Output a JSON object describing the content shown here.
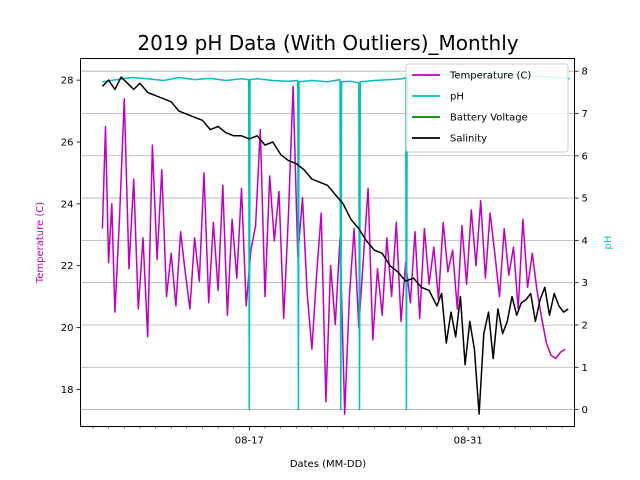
{
  "chart_data": {
    "type": "line",
    "title": "2019 pH Data (With Outliers)_Monthly",
    "xlabel": "Dates (MM-DD)",
    "ylabel_left": "Temperature (C)",
    "ylabel_right": "pH",
    "x_tick_labels": [
      "08-17",
      "08-31"
    ],
    "x_ticks_days": [
      17,
      31
    ],
    "x_range_days": [
      6.2,
      37.8
    ],
    "ylim_left": [
      16.8,
      28.7
    ],
    "ylim_right": [
      -0.4,
      8.3
    ],
    "left_ticks": [
      18,
      20,
      22,
      24,
      26,
      28
    ],
    "right_ticks": [
      0,
      1,
      2,
      3,
      4,
      5,
      6,
      7,
      8
    ],
    "grid": "horizontal on right axis",
    "legend_position": "top-right",
    "colors": {
      "temperature": "#bf00bf",
      "ph": "#00bfbf",
      "battery": "#008000",
      "salinity": "#000000",
      "left_axis_label": "#bf00bf",
      "right_axis_label": "#00bfbf"
    },
    "series": [
      {
        "name": "Temperature (C)",
        "axis": "left",
        "x_days": [
          7.6,
          7.8,
          8.0,
          8.2,
          8.4,
          8.7,
          9.0,
          9.3,
          9.6,
          9.9,
          10.2,
          10.5,
          10.8,
          11.1,
          11.4,
          11.7,
          12.0,
          12.3,
          12.6,
          12.9,
          13.2,
          13.5,
          13.8,
          14.1,
          14.4,
          14.7,
          15.0,
          15.3,
          15.6,
          15.9,
          16.2,
          16.5,
          16.8,
          17.1,
          17.4,
          17.7,
          18.0,
          18.3,
          18.6,
          18.9,
          19.2,
          19.5,
          19.8,
          20.1,
          20.4,
          20.7,
          21.0,
          21.3,
          21.6,
          21.9,
          22.2,
          22.5,
          22.8,
          23.1,
          23.4,
          23.7,
          24.0,
          24.3,
          24.6,
          24.9,
          25.2,
          25.5,
          25.8,
          26.1,
          26.4,
          26.7,
          27.0,
          27.3,
          27.6,
          27.9,
          28.2,
          28.5,
          28.8,
          29.1,
          29.4,
          29.7,
          30.0,
          30.3,
          30.6,
          30.9,
          31.2,
          31.5,
          31.8,
          32.1,
          32.4,
          32.7,
          33.0,
          33.3,
          33.6,
          33.9,
          34.2,
          34.5,
          34.8,
          35.1,
          35.4,
          35.7,
          36.0,
          36.3,
          36.6,
          36.9,
          37.2
        ],
        "values": [
          23.2,
          26.5,
          22.1,
          24.0,
          20.5,
          23.6,
          27.4,
          21.9,
          24.8,
          20.6,
          22.9,
          19.7,
          25.9,
          22.2,
          25.1,
          21.0,
          22.4,
          20.7,
          23.1,
          21.8,
          20.6,
          22.9,
          21.5,
          25.0,
          20.8,
          23.4,
          21.2,
          24.6,
          20.4,
          23.5,
          21.6,
          24.5,
          20.7,
          22.5,
          23.3,
          26.4,
          21.0,
          24.9,
          22.8,
          24.4,
          20.3,
          23.6,
          27.8,
          22.3,
          24.2,
          21.1,
          19.3,
          21.7,
          23.7,
          17.6,
          22.0,
          20.1,
          22.9,
          17.2,
          21.0,
          23.2,
          20.0,
          22.3,
          24.5,
          19.6,
          21.9,
          20.4,
          22.9,
          21.0,
          23.4,
          20.2,
          22.1,
          20.8,
          23.1,
          20.3,
          23.2,
          21.4,
          22.6,
          20.9,
          23.4,
          21.8,
          22.5,
          20.6,
          23.3,
          21.4,
          23.8,
          22.0,
          24.1,
          21.6,
          23.7,
          22.4,
          21.0,
          23.2,
          21.7,
          22.6,
          20.6,
          23.5,
          21.3,
          22.4,
          21.2,
          20.3,
          19.5,
          19.1,
          19.0,
          19.2,
          19.3
        ]
      },
      {
        "name": "pH",
        "axis": "right",
        "x_days": [
          7.6,
          8.5,
          9.5,
          10.5,
          11.5,
          12.5,
          13.5,
          14.5,
          15.5,
          16.5,
          16.96,
          17.0,
          17.04,
          17.5,
          18.5,
          19.5,
          20.1,
          20.14,
          20.18,
          21.0,
          22.0,
          22.8,
          22.85,
          22.9,
          23.5,
          24.0,
          24.05,
          24.1,
          25.0,
          26.0,
          26.8,
          27.0,
          27.05,
          27.1,
          27.5,
          28.5,
          29.5,
          30.5,
          31.5,
          32.5,
          33.5,
          34.5,
          35.5,
          36.5,
          37.5
        ],
        "values": [
          7.75,
          7.8,
          7.85,
          7.82,
          7.78,
          7.85,
          7.8,
          7.83,
          7.78,
          7.82,
          7.8,
          0.0,
          7.8,
          7.82,
          7.78,
          7.76,
          7.78,
          0.0,
          7.75,
          7.78,
          7.75,
          7.8,
          0.0,
          7.75,
          7.76,
          7.72,
          0.0,
          7.75,
          7.78,
          7.8,
          7.82,
          7.85,
          0.0,
          7.85,
          7.9,
          7.95,
          7.92,
          7.88,
          7.9,
          7.92,
          7.95,
          7.9,
          7.88,
          7.85,
          7.82
        ]
      },
      {
        "name": "Battery Voltage",
        "axis": "right",
        "x_days": [],
        "values": []
      },
      {
        "name": "Salinity",
        "axis": "left",
        "x_days": [
          7.6,
          8.0,
          8.4,
          8.8,
          9.2,
          9.6,
          10.0,
          10.5,
          11.0,
          11.5,
          12.0,
          12.5,
          13.0,
          13.5,
          14.0,
          14.5,
          15.0,
          15.5,
          16.0,
          16.5,
          17.0,
          17.5,
          18.0,
          18.5,
          19.0,
          19.5,
          20.0,
          20.5,
          21.0,
          21.5,
          22.0,
          22.5,
          23.0,
          23.5,
          24.0,
          24.5,
          25.0,
          25.5,
          26.0,
          26.5,
          27.0,
          27.5,
          28.0,
          28.5,
          29.0,
          29.3,
          29.6,
          29.9,
          30.2,
          30.5,
          30.8,
          31.1,
          31.4,
          31.7,
          32.0,
          32.3,
          32.6,
          32.9,
          33.2,
          33.5,
          33.8,
          34.1,
          34.4,
          34.7,
          35.0,
          35.3,
          35.6,
          35.9,
          36.2,
          36.5,
          36.8,
          37.1,
          37.4
        ],
        "values": [
          27.8,
          28.0,
          27.7,
          28.1,
          27.9,
          27.7,
          27.9,
          27.6,
          27.5,
          27.4,
          27.3,
          27.0,
          26.9,
          26.8,
          26.7,
          26.4,
          26.5,
          26.3,
          26.2,
          26.2,
          26.1,
          26.2,
          25.9,
          26.0,
          25.6,
          25.4,
          25.3,
          25.1,
          24.8,
          24.7,
          24.6,
          24.3,
          24.0,
          23.5,
          23.2,
          22.8,
          22.5,
          22.4,
          22.0,
          21.8,
          21.5,
          21.6,
          21.3,
          21.2,
          20.7,
          21.1,
          19.5,
          20.5,
          19.7,
          21.0,
          18.8,
          20.2,
          19.3,
          17.2,
          19.8,
          20.5,
          19.0,
          20.6,
          19.8,
          20.2,
          21.0,
          20.4,
          20.8,
          20.9,
          21.1,
          20.2,
          20.9,
          21.3,
          20.4,
          21.1,
          20.7,
          20.5,
          20.6
        ]
      }
    ]
  }
}
